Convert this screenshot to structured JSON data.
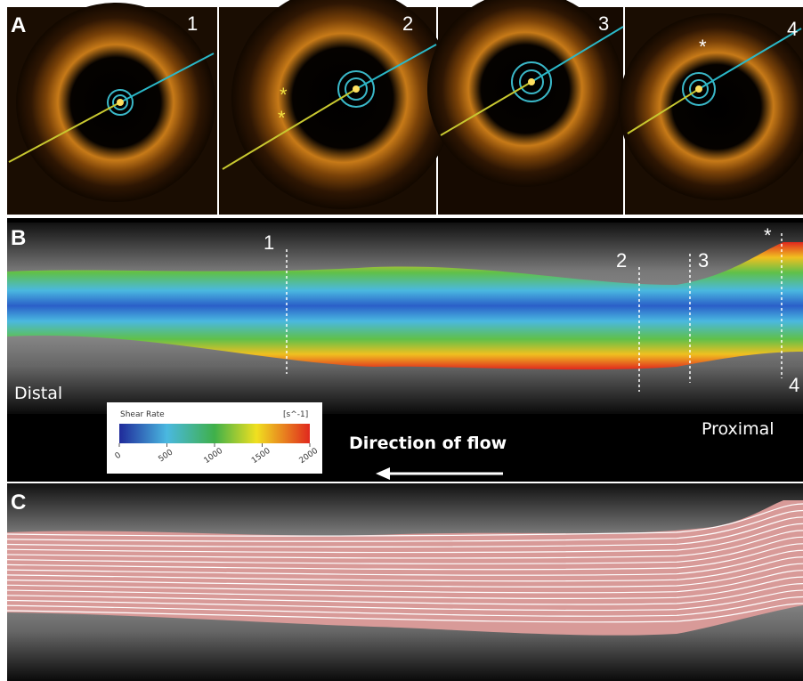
{
  "panel_a": {
    "label": "A",
    "frame_labels": [
      "1",
      "2",
      "3",
      "4"
    ],
    "asterisks": [
      "*",
      "*",
      "*"
    ]
  },
  "panel_b": {
    "label": "B",
    "section_labels": [
      "1",
      "2",
      "3",
      "4"
    ],
    "asterisk": "*",
    "distal": "Distal",
    "proximal": "Proximal",
    "flow_label": "Direction of flow",
    "colorbar": {
      "title": "Shear Rate",
      "unit": "[s^-1]",
      "range": [
        0,
        2000
      ],
      "ticks": [
        0,
        500,
        1000,
        1500,
        2000
      ]
    }
  },
  "panel_c": {
    "label": "C"
  }
}
